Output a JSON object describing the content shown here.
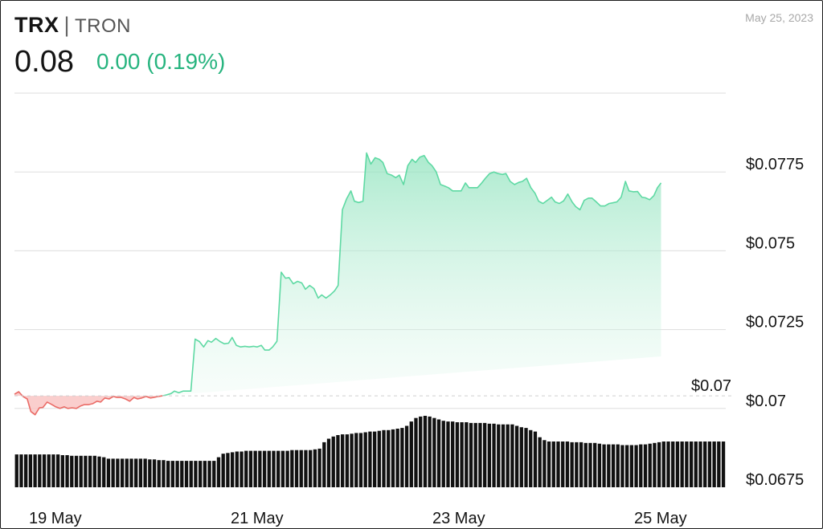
{
  "header": {
    "symbol": "TRX",
    "separator": "|",
    "name": "TRON",
    "price": "0.08",
    "change": "0.00 (0.19%)",
    "date": "May 25, 2023"
  },
  "colors": {
    "up": "#5ed9a3",
    "up_fill": "#c8f2df",
    "down": "#ea6b66",
    "down_fill": "#f9c6c4",
    "volume": "#111111",
    "grid": "#dddddd"
  },
  "chart_data": {
    "type": "area",
    "title": "",
    "xlabel": "",
    "ylabel": "",
    "x_ticks": [
      "19 May",
      "21 May",
      "23 May",
      "25 May"
    ],
    "y_ticks": [
      "$0.0775",
      "$0.075",
      "$0.0725",
      "$0.07",
      "$0.0675"
    ],
    "ylim": [
      0.0675,
      0.08
    ],
    "reference_line": {
      "value": 0.0704,
      "label": "$0.07"
    },
    "x_range": [
      0,
      1
    ],
    "series": [
      {
        "values": [
          [
            0.0,
            0.07045
          ],
          [
            0.006,
            0.07053
          ],
          [
            0.012,
            0.07038
          ],
          [
            0.018,
            0.0703
          ],
          [
            0.023,
            0.0699
          ],
          [
            0.029,
            0.0698
          ],
          [
            0.035,
            0.07002
          ],
          [
            0.04,
            0.07003
          ],
          [
            0.046,
            0.0702
          ],
          [
            0.052,
            0.07013
          ],
          [
            0.058,
            0.07005
          ],
          [
            0.064,
            0.07
          ],
          [
            0.07,
            0.07005
          ],
          [
            0.075,
            0.07
          ],
          [
            0.081,
            0.07002
          ],
          [
            0.087,
            0.07
          ],
          [
            0.093,
            0.07008
          ],
          [
            0.098,
            0.07012
          ],
          [
            0.104,
            0.07012
          ],
          [
            0.11,
            0.07015
          ],
          [
            0.116,
            0.07023
          ],
          [
            0.121,
            0.0702
          ],
          [
            0.127,
            0.07033
          ],
          [
            0.133,
            0.0703
          ],
          [
            0.139,
            0.07038
          ],
          [
            0.144,
            0.07035
          ],
          [
            0.15,
            0.07035
          ],
          [
            0.156,
            0.0703
          ],
          [
            0.162,
            0.07023
          ],
          [
            0.168,
            0.07035
          ],
          [
            0.173,
            0.0703
          ],
          [
            0.179,
            0.07033
          ],
          [
            0.185,
            0.07038
          ],
          [
            0.191,
            0.07033
          ],
          [
            0.196,
            0.07035
          ],
          [
            0.202,
            0.07038
          ],
          [
            0.208,
            0.0704
          ],
          [
            0.214,
            0.07043
          ],
          [
            0.22,
            0.07047
          ],
          [
            0.225,
            0.07055
          ],
          [
            0.231,
            0.0705
          ],
          [
            0.237,
            0.07055
          ],
          [
            0.243,
            0.07055
          ],
          [
            0.248,
            0.07055
          ],
          [
            0.254,
            0.0722
          ],
          [
            0.26,
            0.07212
          ],
          [
            0.266,
            0.07195
          ],
          [
            0.272,
            0.07215
          ],
          [
            0.277,
            0.0721
          ],
          [
            0.283,
            0.07222
          ],
          [
            0.289,
            0.07212
          ],
          [
            0.295,
            0.07205
          ],
          [
            0.301,
            0.07207
          ],
          [
            0.306,
            0.07225
          ],
          [
            0.312,
            0.072
          ],
          [
            0.318,
            0.07195
          ],
          [
            0.324,
            0.07197
          ],
          [
            0.33,
            0.07195
          ],
          [
            0.336,
            0.07197
          ],
          [
            0.341,
            0.07195
          ],
          [
            0.347,
            0.072
          ],
          [
            0.352,
            0.07185
          ],
          [
            0.358,
            0.07185
          ],
          [
            0.363,
            0.07195
          ],
          [
            0.369,
            0.07213
          ],
          [
            0.375,
            0.07432
          ],
          [
            0.381,
            0.07413
          ],
          [
            0.386,
            0.07415
          ],
          [
            0.392,
            0.07395
          ],
          [
            0.398,
            0.07403
          ],
          [
            0.404,
            0.07398
          ],
          [
            0.409,
            0.07378
          ],
          [
            0.415,
            0.0739
          ],
          [
            0.421,
            0.0738
          ],
          [
            0.427,
            0.0735
          ],
          [
            0.432,
            0.0736
          ],
          [
            0.438,
            0.0735
          ],
          [
            0.444,
            0.0736
          ],
          [
            0.45,
            0.07373
          ],
          [
            0.455,
            0.0739
          ],
          [
            0.461,
            0.0763
          ],
          [
            0.467,
            0.07665
          ],
          [
            0.473,
            0.0769
          ],
          [
            0.478,
            0.07657
          ],
          [
            0.484,
            0.07653
          ],
          [
            0.49,
            0.07657
          ],
          [
            0.495,
            0.0781
          ],
          [
            0.501,
            0.07775
          ],
          [
            0.507,
            0.07795
          ],
          [
            0.513,
            0.0779
          ],
          [
            0.518,
            0.0778
          ],
          [
            0.524,
            0.07745
          ],
          [
            0.53,
            0.0774
          ],
          [
            0.536,
            0.07732
          ],
          [
            0.541,
            0.0774
          ],
          [
            0.547,
            0.0771
          ],
          [
            0.553,
            0.0777
          ],
          [
            0.559,
            0.0779
          ],
          [
            0.564,
            0.0778
          ],
          [
            0.57,
            0.07797
          ],
          [
            0.576,
            0.07802
          ],
          [
            0.582,
            0.0778
          ],
          [
            0.587,
            0.0777
          ],
          [
            0.593,
            0.0775
          ],
          [
            0.599,
            0.0771
          ],
          [
            0.605,
            0.07705
          ],
          [
            0.61,
            0.077
          ],
          [
            0.616,
            0.0769
          ],
          [
            0.622,
            0.0769
          ],
          [
            0.628,
            0.0769
          ],
          [
            0.634,
            0.07715
          ],
          [
            0.639,
            0.077
          ],
          [
            0.645,
            0.077
          ],
          [
            0.651,
            0.077
          ],
          [
            0.657,
            0.07715
          ],
          [
            0.662,
            0.0773
          ],
          [
            0.668,
            0.07745
          ],
          [
            0.674,
            0.0775
          ],
          [
            0.68,
            0.07745
          ],
          [
            0.686,
            0.07742
          ],
          [
            0.691,
            0.07745
          ],
          [
            0.697,
            0.0772
          ],
          [
            0.703,
            0.0771
          ],
          [
            0.709,
            0.07717
          ],
          [
            0.714,
            0.0772
          ],
          [
            0.72,
            0.0773
          ],
          [
            0.726,
            0.077
          ],
          [
            0.732,
            0.07682
          ],
          [
            0.737,
            0.07657
          ],
          [
            0.743,
            0.0765
          ],
          [
            0.749,
            0.0766
          ],
          [
            0.755,
            0.0767
          ],
          [
            0.76,
            0.07655
          ],
          [
            0.766,
            0.0765
          ],
          [
            0.772,
            0.07658
          ],
          [
            0.778,
            0.0768
          ],
          [
            0.784,
            0.07655
          ],
          [
            0.789,
            0.0764
          ],
          [
            0.795,
            0.0763
          ],
          [
            0.801,
            0.0766
          ],
          [
            0.807,
            0.07667
          ],
          [
            0.812,
            0.07667
          ],
          [
            0.818,
            0.07655
          ],
          [
            0.824,
            0.07642
          ],
          [
            0.83,
            0.07642
          ],
          [
            0.836,
            0.0765
          ],
          [
            0.841,
            0.07652
          ],
          [
            0.847,
            0.07655
          ],
          [
            0.853,
            0.0767
          ],
          [
            0.859,
            0.0772
          ],
          [
            0.864,
            0.0769
          ],
          [
            0.87,
            0.07687
          ],
          [
            0.876,
            0.07688
          ],
          [
            0.882,
            0.0767
          ],
          [
            0.887,
            0.07668
          ],
          [
            0.893,
            0.07662
          ],
          [
            0.899,
            0.07675
          ],
          [
            0.904,
            0.077
          ],
          [
            0.909,
            0.07715
          ]
        ]
      }
    ],
    "volume": [
      0.46,
      0.46,
      0.46,
      0.46,
      0.46,
      0.46,
      0.46,
      0.46,
      0.46,
      0.46,
      0.45,
      0.45,
      0.44,
      0.44,
      0.44,
      0.44,
      0.44,
      0.44,
      0.43,
      0.42,
      0.4,
      0.4,
      0.4,
      0.4,
      0.4,
      0.4,
      0.4,
      0.4,
      0.4,
      0.39,
      0.39,
      0.38,
      0.38,
      0.37,
      0.37,
      0.37,
      0.37,
      0.37,
      0.37,
      0.37,
      0.37,
      0.37,
      0.37,
      0.37,
      0.42,
      0.47,
      0.48,
      0.49,
      0.5,
      0.5,
      0.51,
      0.51,
      0.51,
      0.51,
      0.51,
      0.51,
      0.51,
      0.51,
      0.51,
      0.51,
      0.52,
      0.52,
      0.52,
      0.52,
      0.52,
      0.53,
      0.54,
      0.63,
      0.68,
      0.71,
      0.73,
      0.74,
      0.74,
      0.75,
      0.76,
      0.76,
      0.77,
      0.78,
      0.78,
      0.79,
      0.8,
      0.8,
      0.81,
      0.82,
      0.83,
      0.86,
      0.92,
      0.97,
      0.99,
      1.0,
      0.99,
      0.97,
      0.95,
      0.93,
      0.92,
      0.92,
      0.91,
      0.91,
      0.91,
      0.9,
      0.9,
      0.9,
      0.9,
      0.89,
      0.89,
      0.88,
      0.88,
      0.88,
      0.88,
      0.86,
      0.84,
      0.83,
      0.8,
      0.78,
      0.7,
      0.66,
      0.64,
      0.64,
      0.64,
      0.64,
      0.64,
      0.63,
      0.63,
      0.63,
      0.62,
      0.62,
      0.62,
      0.61,
      0.6,
      0.6,
      0.6,
      0.6,
      0.59,
      0.59,
      0.59,
      0.59,
      0.6,
      0.6,
      0.61,
      0.62,
      0.63,
      0.64,
      0.64,
      0.64,
      0.64,
      0.64,
      0.64,
      0.64,
      0.64,
      0.64,
      0.64,
      0.64,
      0.64,
      0.64,
      0.64
    ],
    "grid": true,
    "legend": "none"
  }
}
